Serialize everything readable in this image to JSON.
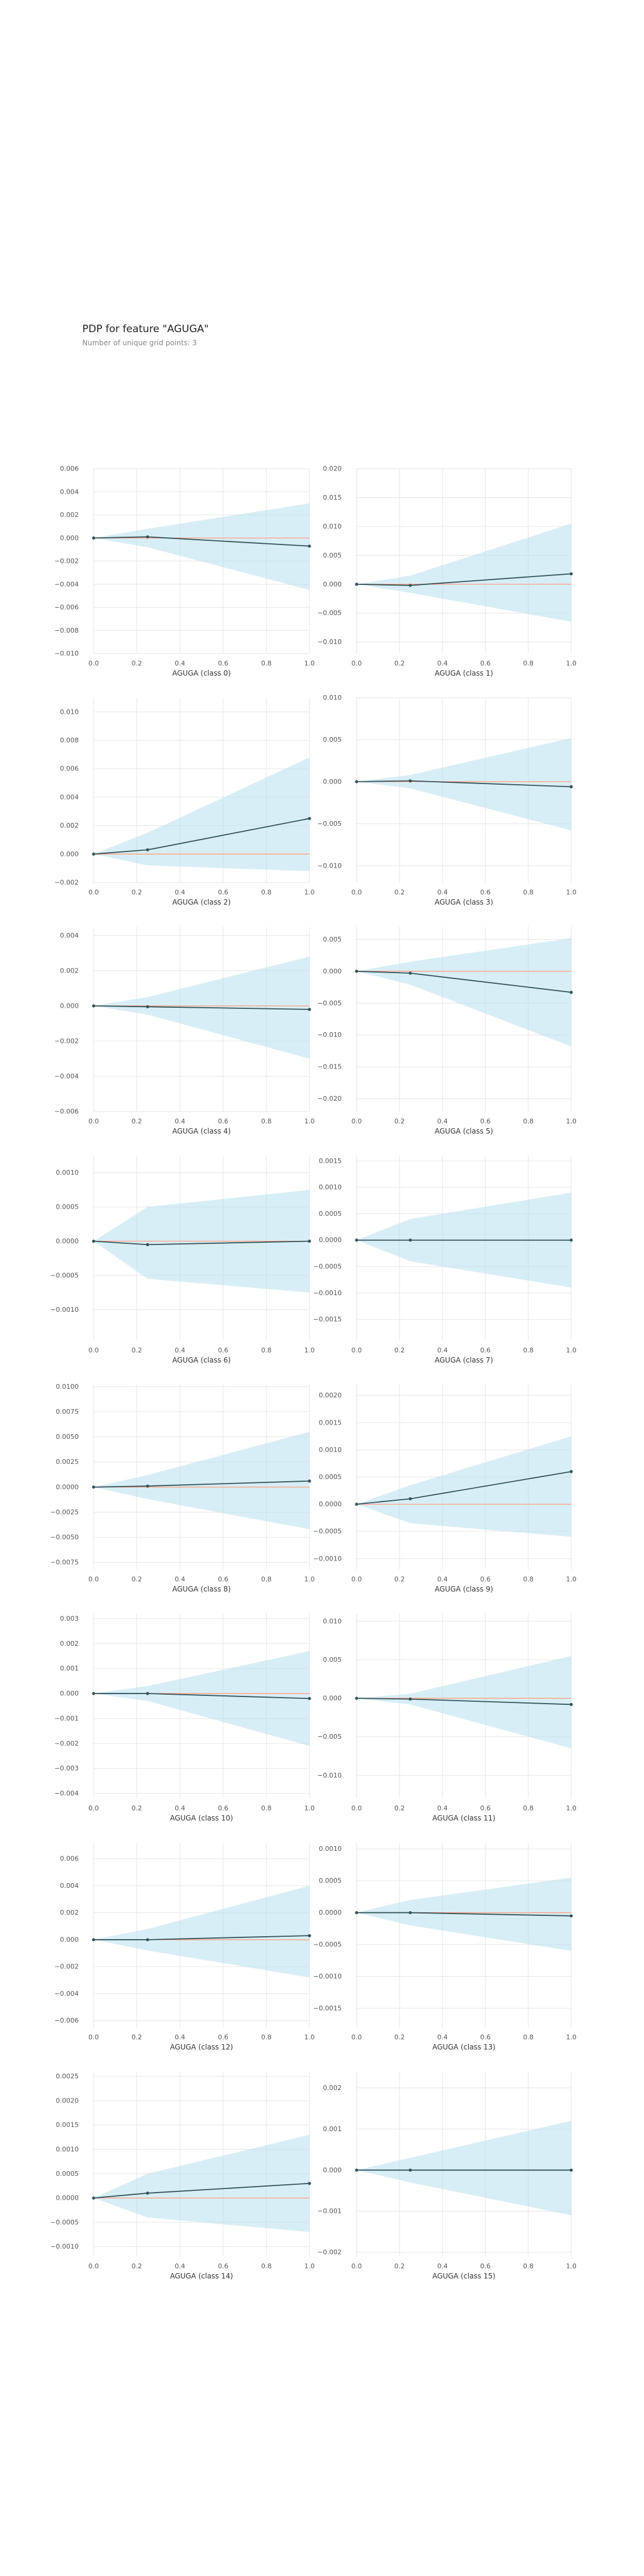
{
  "title": "PDP for feature \"AGUGA\"",
  "subtitle": "Number of unique grid points: 3",
  "colors": {
    "band": "#b8e0ee",
    "line": "#33535b",
    "zero_line": "#ff9e80",
    "grid": "#e6e6e6",
    "tick_text": "#555555",
    "label_text": "#333333"
  },
  "chart_data": [
    {
      "type": "line",
      "xlabel": "AGUGA (class 0)",
      "x": [
        0,
        0.25,
        1
      ],
      "values": [
        0,
        0.0001,
        -0.0007
      ],
      "upper": [
        0,
        0.0008,
        0.003
      ],
      "lower": [
        0,
        -0.0008,
        -0.0045
      ],
      "ylim": [
        -0.01,
        0.006
      ],
      "yticks": [
        -0.01,
        -0.008,
        -0.006,
        -0.004,
        -0.002,
        0.0,
        0.002,
        0.004,
        0.006
      ],
      "ytick_labels": [
        "−0.010",
        "−0.008",
        "−0.006",
        "−0.004",
        "−0.002",
        "0.000",
        "0.002",
        "0.004",
        "0.006"
      ],
      "xticks": [
        0,
        0.2,
        0.4,
        0.6,
        0.8,
        1
      ],
      "xtick_labels": [
        "0.0",
        "0.2",
        "0.4",
        "0.6",
        "0.8",
        "1.0"
      ]
    },
    {
      "type": "line",
      "xlabel": "AGUGA (class 1)",
      "x": [
        0,
        0.25,
        1
      ],
      "values": [
        0,
        -0.0002,
        0.0018
      ],
      "upper": [
        0,
        0.0015,
        0.0105
      ],
      "lower": [
        0,
        -0.0015,
        -0.0065
      ],
      "ylim": [
        -0.012,
        0.02
      ],
      "yticks": [
        -0.01,
        -0.005,
        0.0,
        0.005,
        0.01,
        0.015,
        0.02
      ],
      "ytick_labels": [
        "−0.010",
        "−0.005",
        "0.000",
        "0.005",
        "0.010",
        "0.015",
        "0.020"
      ],
      "xticks": [
        0,
        0.2,
        0.4,
        0.6,
        0.8,
        1
      ],
      "xtick_labels": [
        "0.0",
        "0.2",
        "0.4",
        "0.6",
        "0.8",
        "1.0"
      ]
    },
    {
      "type": "line",
      "xlabel": "AGUGA (class 2)",
      "x": [
        0,
        0.25,
        1
      ],
      "values": [
        0,
        0.0003,
        0.0025
      ],
      "upper": [
        0,
        0.0015,
        0.0068
      ],
      "lower": [
        0,
        -0.0008,
        -0.0012
      ],
      "ylim": [
        -0.002,
        0.011
      ],
      "yticks": [
        -0.002,
        0.0,
        0.002,
        0.004,
        0.006,
        0.008,
        0.01
      ],
      "ytick_labels": [
        "−0.002",
        "0.000",
        "0.002",
        "0.004",
        "0.006",
        "0.008",
        "0.010"
      ],
      "xticks": [
        0,
        0.2,
        0.4,
        0.6,
        0.8,
        1
      ],
      "xtick_labels": [
        "0.0",
        "0.2",
        "0.4",
        "0.6",
        "0.8",
        "1.0"
      ]
    },
    {
      "type": "line",
      "xlabel": "AGUGA (class 3)",
      "x": [
        0,
        0.25,
        1
      ],
      "values": [
        0,
        0.0001,
        -0.0006
      ],
      "upper": [
        0,
        0.0008,
        0.0052
      ],
      "lower": [
        0,
        -0.0008,
        -0.0058
      ],
      "ylim": [
        -0.012,
        0.01
      ],
      "yticks": [
        -0.01,
        -0.005,
        0.0,
        0.005,
        0.01
      ],
      "ytick_labels": [
        "−0.010",
        "−0.005",
        "0.000",
        "0.005",
        "0.010"
      ],
      "xticks": [
        0,
        0.2,
        0.4,
        0.6,
        0.8,
        1
      ],
      "xtick_labels": [
        "0.0",
        "0.2",
        "0.4",
        "0.6",
        "0.8",
        "1.0"
      ]
    },
    {
      "type": "line",
      "xlabel": "AGUGA (class 4)",
      "x": [
        0,
        0.25,
        1
      ],
      "values": [
        0,
        -5e-05,
        -0.0002
      ],
      "upper": [
        0,
        0.0005,
        0.0028
      ],
      "lower": [
        0,
        -0.0005,
        -0.003
      ],
      "ylim": [
        -0.006,
        0.0045
      ],
      "yticks": [
        -0.006,
        -0.004,
        -0.002,
        0.0,
        0.002,
        0.004
      ],
      "ytick_labels": [
        "−0.006",
        "−0.004",
        "−0.002",
        "0.000",
        "0.002",
        "0.004"
      ],
      "xticks": [
        0,
        0.2,
        0.4,
        0.6,
        0.8,
        1
      ],
      "xtick_labels": [
        "0.0",
        "0.2",
        "0.4",
        "0.6",
        "0.8",
        "1.0"
      ]
    },
    {
      "type": "line",
      "xlabel": "AGUGA (class 5)",
      "x": [
        0,
        0.25,
        1
      ],
      "values": [
        0,
        -0.0003,
        -0.0033
      ],
      "upper": [
        0,
        0.0015,
        0.0052
      ],
      "lower": [
        0,
        -0.0021,
        -0.0118
      ],
      "ylim": [
        -0.022,
        0.007
      ],
      "yticks": [
        -0.02,
        -0.015,
        -0.01,
        -0.005,
        0.0,
        0.005
      ],
      "ytick_labels": [
        "−0.020",
        "−0.015",
        "−0.010",
        "−0.005",
        "0.000",
        "0.005"
      ],
      "xticks": [
        0,
        0.2,
        0.4,
        0.6,
        0.8,
        1
      ],
      "xtick_labels": [
        "0.0",
        "0.2",
        "0.4",
        "0.6",
        "0.8",
        "1.0"
      ]
    },
    {
      "type": "line",
      "xlabel": "AGUGA (class 6)",
      "x": [
        0,
        0.25,
        1
      ],
      "values": [
        0,
        -5e-05,
        0.0
      ],
      "upper": [
        0,
        0.0005,
        0.00075
      ],
      "lower": [
        0,
        -0.00055,
        -0.00075
      ],
      "ylim": [
        -0.00145,
        0.00125
      ],
      "yticks": [
        -0.001,
        -0.0005,
        0.0,
        0.0005,
        0.001
      ],
      "ytick_labels": [
        "−0.0010",
        "−0.0005",
        "0.0000",
        "0.0005",
        "0.0010"
      ],
      "xticks": [
        0,
        0.2,
        0.4,
        0.6,
        0.8,
        1
      ],
      "xtick_labels": [
        "0.0",
        "0.2",
        "0.4",
        "0.6",
        "0.8",
        "1.0"
      ]
    },
    {
      "type": "line",
      "xlabel": "AGUGA (class 7)",
      "x": [
        0,
        0.25,
        1
      ],
      "values": [
        0,
        0.0,
        0.0
      ],
      "upper": [
        0,
        0.0004,
        0.0009
      ],
      "lower": [
        0,
        -0.0004,
        -0.0009
      ],
      "ylim": [
        -0.0019,
        0.0016
      ],
      "yticks": [
        -0.0015,
        -0.001,
        -0.0005,
        0.0,
        0.0005,
        0.001,
        0.0015
      ],
      "ytick_labels": [
        "−0.0015",
        "−0.0010",
        "−0.0005",
        "0.0000",
        "0.0005",
        "0.0010",
        "0.0015"
      ],
      "xticks": [
        0,
        0.2,
        0.4,
        0.6,
        0.8,
        1
      ],
      "xtick_labels": [
        "0.0",
        "0.2",
        "0.4",
        "0.6",
        "0.8",
        "1.0"
      ]
    },
    {
      "type": "line",
      "xlabel": "AGUGA (class 8)",
      "x": [
        0,
        0.25,
        1
      ],
      "values": [
        0,
        0.0001,
        0.0006
      ],
      "upper": [
        0,
        0.0012,
        0.0055
      ],
      "lower": [
        0,
        -0.0012,
        -0.0042
      ],
      "ylim": [
        -0.0082,
        0.0102
      ],
      "yticks": [
        -0.0075,
        -0.005,
        -0.0025,
        0.0,
        0.0025,
        0.005,
        0.0075,
        0.01
      ],
      "ytick_labels": [
        "−0.0075",
        "−0.0050",
        "−0.0025",
        "0.0000",
        "0.0025",
        "0.0050",
        "0.0075",
        "0.0100"
      ],
      "xticks": [
        0,
        0.2,
        0.4,
        0.6,
        0.8,
        1
      ],
      "xtick_labels": [
        "0.0",
        "0.2",
        "0.4",
        "0.6",
        "0.8",
        "1.0"
      ]
    },
    {
      "type": "line",
      "xlabel": "AGUGA (class 9)",
      "x": [
        0,
        0.25,
        1
      ],
      "values": [
        0,
        0.0001,
        0.0006
      ],
      "upper": [
        0,
        0.00035,
        0.00125
      ],
      "lower": [
        0,
        -0.00035,
        -0.0006
      ],
      "ylim": [
        -0.0012,
        0.0022
      ],
      "yticks": [
        -0.001,
        -0.0005,
        0.0,
        0.0005,
        0.001,
        0.0015,
        0.002
      ],
      "ytick_labels": [
        "−0.0010",
        "−0.0005",
        "0.0000",
        "0.0005",
        "0.0010",
        "0.0015",
        "0.0020"
      ],
      "xticks": [
        0,
        0.2,
        0.4,
        0.6,
        0.8,
        1
      ],
      "xtick_labels": [
        "0.0",
        "0.2",
        "0.4",
        "0.6",
        "0.8",
        "1.0"
      ]
    },
    {
      "type": "line",
      "xlabel": "AGUGA (class 10)",
      "x": [
        0,
        0.25,
        1
      ],
      "values": [
        0,
        0.0,
        -0.0002
      ],
      "upper": [
        0,
        0.0003,
        0.0017
      ],
      "lower": [
        0,
        -0.0003,
        -0.0021
      ],
      "ylim": [
        -0.0042,
        0.0032
      ],
      "yticks": [
        -0.004,
        -0.003,
        -0.002,
        -0.001,
        0.0,
        0.001,
        0.002,
        0.003
      ],
      "ytick_labels": [
        "−0.004",
        "−0.003",
        "−0.002",
        "−0.001",
        "0.000",
        "0.001",
        "0.002",
        "0.003"
      ],
      "xticks": [
        0,
        0.2,
        0.4,
        0.6,
        0.8,
        1
      ],
      "xtick_labels": [
        "0.0",
        "0.2",
        "0.4",
        "0.6",
        "0.8",
        "1.0"
      ]
    },
    {
      "type": "line",
      "xlabel": "AGUGA (class 11)",
      "x": [
        0,
        0.25,
        1
      ],
      "values": [
        0,
        -0.0001,
        -0.0008
      ],
      "upper": [
        0,
        0.0006,
        0.0055
      ],
      "lower": [
        0,
        -0.0008,
        -0.0065
      ],
      "ylim": [
        -0.013,
        0.011
      ],
      "yticks": [
        -0.01,
        -0.005,
        0.0,
        0.005,
        0.01
      ],
      "ytick_labels": [
        "−0.010",
        "−0.005",
        "0.000",
        "0.005",
        "0.010"
      ],
      "xticks": [
        0,
        0.2,
        0.4,
        0.6,
        0.8,
        1
      ],
      "xtick_labels": [
        "0.0",
        "0.2",
        "0.4",
        "0.6",
        "0.8",
        "1.0"
      ]
    },
    {
      "type": "line",
      "xlabel": "AGUGA (class 12)",
      "x": [
        0,
        0.25,
        1
      ],
      "values": [
        0,
        0.0,
        0.0003
      ],
      "upper": [
        0,
        0.0008,
        0.004
      ],
      "lower": [
        0,
        -0.0008,
        -0.0028
      ],
      "ylim": [
        -0.0065,
        0.0072
      ],
      "yticks": [
        -0.006,
        -0.004,
        -0.002,
        0.0,
        0.002,
        0.004,
        0.006
      ],
      "ytick_labels": [
        "−0.006",
        "−0.004",
        "−0.002",
        "0.000",
        "0.002",
        "0.004",
        "0.006"
      ],
      "xticks": [
        0,
        0.2,
        0.4,
        0.6,
        0.8,
        1
      ],
      "xtick_labels": [
        "0.0",
        "0.2",
        "0.4",
        "0.6",
        "0.8",
        "1.0"
      ]
    },
    {
      "type": "line",
      "xlabel": "AGUGA (class 13)",
      "x": [
        0,
        0.25,
        1
      ],
      "values": [
        0,
        0.0,
        -5e-05
      ],
      "upper": [
        0,
        0.0002,
        0.00055
      ],
      "lower": [
        0,
        -0.0002,
        -0.0006
      ],
      "ylim": [
        -0.0018,
        0.0011
      ],
      "yticks": [
        -0.0015,
        -0.001,
        -0.0005,
        0.0,
        0.0005,
        0.001
      ],
      "ytick_labels": [
        "−0.0015",
        "−0.0010",
        "−0.0005",
        "0.0000",
        "0.0005",
        "0.0010"
      ],
      "xticks": [
        0,
        0.2,
        0.4,
        0.6,
        0.8,
        1
      ],
      "xtick_labels": [
        "0.0",
        "0.2",
        "0.4",
        "0.6",
        "0.8",
        "1.0"
      ]
    },
    {
      "type": "line",
      "xlabel": "AGUGA (class 14)",
      "x": [
        0,
        0.25,
        1
      ],
      "values": [
        0,
        0.0001,
        0.0003
      ],
      "upper": [
        0,
        0.0005,
        0.0013
      ],
      "lower": [
        0,
        -0.0004,
        -0.0007
      ],
      "ylim": [
        -0.0012,
        0.0026
      ],
      "yticks": [
        -0.001,
        -0.0005,
        0.0,
        0.0005,
        0.001,
        0.0015,
        0.002,
        0.0025
      ],
      "ytick_labels": [
        "−0.0010",
        "−0.0005",
        "0.0000",
        "0.0005",
        "0.0010",
        "0.0015",
        "0.0020",
        "0.0025"
      ],
      "xticks": [
        0,
        0.2,
        0.4,
        0.6,
        0.8,
        1
      ],
      "xtick_labels": [
        "0.0",
        "0.2",
        "0.4",
        "0.6",
        "0.8",
        "1.0"
      ]
    },
    {
      "type": "line",
      "xlabel": "AGUGA (class 15)",
      "x": [
        0,
        0.25,
        1
      ],
      "values": [
        0,
        0.0,
        0.0
      ],
      "upper": [
        0,
        0.0003,
        0.0012
      ],
      "lower": [
        0,
        -0.0003,
        -0.0011
      ],
      "ylim": [
        -0.0021,
        0.0024
      ],
      "yticks": [
        -0.002,
        -0.001,
        0.0,
        0.001,
        0.002
      ],
      "ytick_labels": [
        "−0.002",
        "−0.001",
        "0.000",
        "0.001",
        "0.002"
      ],
      "xticks": [
        0,
        0.2,
        0.4,
        0.6,
        0.8,
        1
      ],
      "xtick_labels": [
        "0.0",
        "0.2",
        "0.4",
        "0.6",
        "0.8",
        "1.0"
      ]
    }
  ]
}
